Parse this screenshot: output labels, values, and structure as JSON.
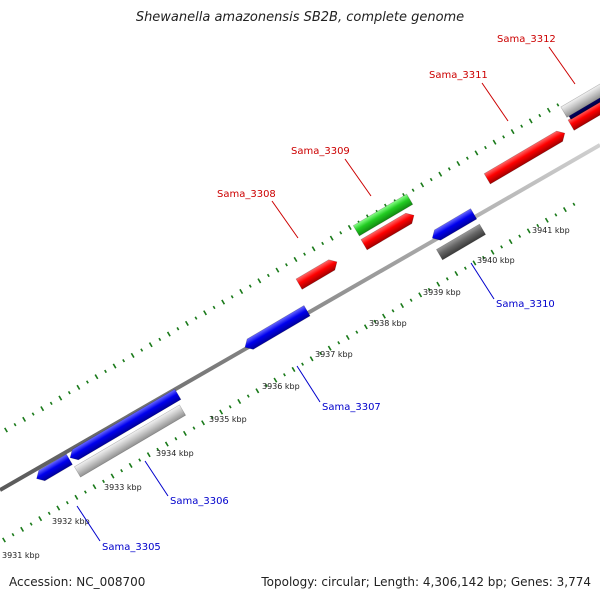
{
  "title": "Shewanella amazonensis SB2B, complete genome",
  "footer": {
    "accession": "Accession: NC_008700",
    "summary": "Topology: circular; Length: 4,306,142 bp; Genes: 3,774"
  },
  "colors": {
    "forward_label": "#cc0000",
    "reverse_label": "#0000cc",
    "tick": "#1a7a1a",
    "backbone": "#888888"
  },
  "ticks": [
    {
      "label": "3931 kbp"
    },
    {
      "label": "3932 kbp"
    },
    {
      "label": "3933 kbp"
    },
    {
      "label": "3934 kbp"
    },
    {
      "label": "3935 kbp"
    },
    {
      "label": "3936 kbp"
    },
    {
      "label": "3937 kbp"
    },
    {
      "label": "3938 kbp"
    },
    {
      "label": "3939 kbp"
    },
    {
      "label": "3940 kbp"
    },
    {
      "label": "3941 kbp"
    }
  ],
  "gene_labels": [
    {
      "text": "Sama_3305",
      "strand": "reverse"
    },
    {
      "text": "Sama_3306",
      "strand": "reverse"
    },
    {
      "text": "Sama_3307",
      "strand": "reverse"
    },
    {
      "text": "Sama_3308",
      "strand": "forward"
    },
    {
      "text": "Sama_3309",
      "strand": "forward"
    },
    {
      "text": "Sama_3310",
      "strand": "reverse"
    },
    {
      "text": "Sama_3311",
      "strand": "forward"
    },
    {
      "text": "Sama_3312",
      "strand": "forward"
    }
  ]
}
